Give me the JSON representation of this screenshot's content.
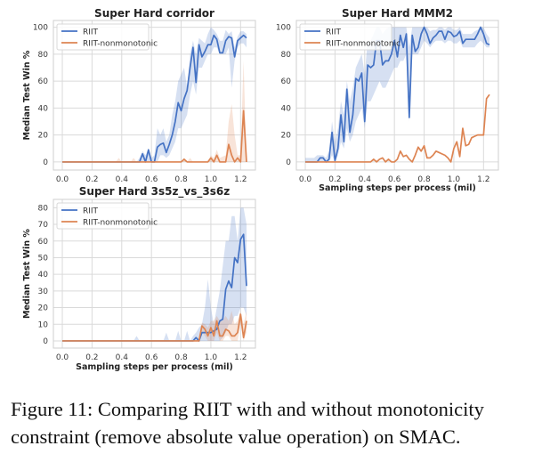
{
  "caption": {
    "line1": "Figure 11: Comparing RIIT with and without monotonicity",
    "line2": "constraint (remove absolute value operation) on SMAC."
  },
  "colors": {
    "RIIT": "#4472c4",
    "RIIT-nonmonotonic": "#dd8452",
    "grid": "#dadada"
  },
  "chart_data": [
    {
      "type": "line",
      "title": "Super Hard corridor",
      "xlabel": "",
      "ylabel": "Median Test Win %",
      "xlim": [
        -0.06,
        1.3
      ],
      "ylim": [
        -6,
        105
      ],
      "xticks": [
        0.0,
        0.2,
        0.4,
        0.6,
        0.8,
        1.0,
        1.2
      ],
      "xtick_labels": [
        "0.0",
        "0.2",
        "0.4",
        "0.6",
        "0.8",
        "1.0",
        "1.2"
      ],
      "yticks": [
        0,
        20,
        40,
        60,
        80,
        100
      ],
      "ytick_labels": [
        "0",
        "20",
        "40",
        "60",
        "80",
        "100"
      ],
      "grid": true,
      "legend": "top-left",
      "series": [
        {
          "name": "RIIT",
          "x": [
            0,
            0.5,
            0.52,
            0.54,
            0.56,
            0.58,
            0.6,
            0.62,
            0.64,
            0.66,
            0.68,
            0.7,
            0.72,
            0.74,
            0.76,
            0.78,
            0.8,
            0.82,
            0.84,
            0.86,
            0.88,
            0.9,
            0.92,
            0.94,
            0.96,
            0.98,
            1.0,
            1.02,
            1.04,
            1.06,
            1.08,
            1.1,
            1.12,
            1.14,
            1.16,
            1.18,
            1.2,
            1.22,
            1.24
          ],
          "y": [
            0,
            0,
            0,
            6,
            0,
            9,
            0,
            0,
            11,
            13,
            14,
            7,
            13,
            20,
            30,
            44,
            38,
            47,
            53,
            70,
            85,
            59,
            87,
            78,
            82,
            87,
            87,
            94,
            91,
            81,
            81,
            90,
            93,
            92,
            78,
            90,
            92,
            94,
            92
          ],
          "lo": [
            0,
            0,
            0,
            0,
            0,
            0,
            0,
            0,
            0,
            5,
            5,
            3,
            5,
            10,
            15,
            25,
            25,
            30,
            35,
            50,
            60,
            50,
            70,
            70,
            75,
            80,
            80,
            85,
            85,
            80,
            80,
            80,
            85,
            55,
            75,
            85,
            88,
            88,
            85
          ],
          "hi": [
            0,
            0,
            3,
            8,
            5,
            10,
            3,
            5,
            25,
            20,
            25,
            15,
            20,
            35,
            45,
            60,
            65,
            70,
            55,
            80,
            90,
            80,
            92,
            90,
            88,
            95,
            100,
            98,
            95,
            90,
            90,
            98,
            95,
            97,
            85,
            93,
            97,
            97,
            95
          ]
        },
        {
          "name": "RIIT-nonmonotonic",
          "x": [
            0,
            0.36,
            0.38,
            0.4,
            0.46,
            0.48,
            0.5,
            0.8,
            0.82,
            0.84,
            0.86,
            0.88,
            0.9,
            0.98,
            1.0,
            1.02,
            1.04,
            1.06,
            1.1,
            1.12,
            1.14,
            1.16,
            1.18,
            1.2,
            1.22,
            1.24
          ],
          "y": [
            0,
            0,
            0,
            0,
            0,
            0,
            0,
            0,
            2,
            0,
            0,
            0,
            0,
            0,
            3,
            0,
            5,
            0,
            0,
            13,
            5,
            0,
            3,
            0,
            38,
            0
          ],
          "lo": [
            0,
            0,
            0,
            0,
            0,
            0,
            0,
            0,
            0,
            0,
            0,
            0,
            0,
            0,
            0,
            0,
            0,
            0,
            0,
            0,
            0,
            0,
            0,
            0,
            0,
            0
          ],
          "hi": [
            0,
            0,
            3,
            0,
            0,
            3,
            0,
            0,
            3,
            0,
            3,
            0,
            0,
            0,
            5,
            3,
            9,
            3,
            5,
            30,
            43,
            20,
            5,
            5,
            75,
            0
          ]
        }
      ]
    },
    {
      "type": "line",
      "title": "Super Hard MMM2",
      "xlabel": "Sampling steps per process (mil)",
      "ylabel": "",
      "xlim": [
        -0.06,
        1.3
      ],
      "ylim": [
        -6,
        105
      ],
      "xticks": [
        0.0,
        0.2,
        0.4,
        0.6,
        0.8,
        1.0,
        1.2
      ],
      "xtick_labels": [
        "0.0",
        "0.2",
        "0.4",
        "0.6",
        "0.8",
        "1.0",
        "1.2"
      ],
      "yticks": [
        0,
        20,
        40,
        60,
        80,
        100
      ],
      "ytick_labels": [
        "0",
        "20",
        "40",
        "60",
        "80",
        "100"
      ],
      "grid": true,
      "legend": "top-left",
      "series": [
        {
          "name": "RIIT",
          "x": [
            0,
            0.02,
            0.04,
            0.06,
            0.08,
            0.1,
            0.12,
            0.14,
            0.16,
            0.18,
            0.2,
            0.22,
            0.24,
            0.26,
            0.28,
            0.3,
            0.32,
            0.34,
            0.36,
            0.38,
            0.4,
            0.42,
            0.44,
            0.46,
            0.48,
            0.5,
            0.52,
            0.54,
            0.56,
            0.58,
            0.6,
            0.62,
            0.64,
            0.66,
            0.68,
            0.7,
            0.72,
            0.74,
            0.76,
            0.78,
            0.8,
            0.82,
            0.84,
            0.86,
            0.88,
            0.9,
            0.92,
            0.94,
            0.96,
            0.98,
            1.0,
            1.02,
            1.04,
            1.06,
            1.08,
            1.1,
            1.12,
            1.14,
            1.16,
            1.18,
            1.2,
            1.22,
            1.24
          ],
          "y": [
            0,
            0,
            0,
            0,
            0,
            3,
            3,
            0,
            2,
            22,
            1,
            10,
            35,
            15,
            54,
            22,
            35,
            62,
            60,
            66,
            30,
            72,
            70,
            72,
            90,
            90,
            72,
            75,
            75,
            80,
            90,
            78,
            94,
            85,
            95,
            33,
            94,
            82,
            85,
            95,
            100,
            95,
            88,
            92,
            94,
            97,
            97,
            91,
            97,
            96,
            93,
            94,
            97,
            88,
            91,
            91,
            91,
            91,
            95,
            100,
            95,
            88,
            87
          ],
          "lo": [
            0,
            0,
            0,
            0,
            0,
            0,
            0,
            0,
            0,
            5,
            0,
            5,
            15,
            10,
            25,
            15,
            20,
            30,
            35,
            40,
            25,
            45,
            45,
            50,
            55,
            60,
            55,
            55,
            60,
            65,
            70,
            70,
            75,
            75,
            80,
            30,
            80,
            80,
            80,
            85,
            90,
            88,
            85,
            88,
            90,
            90,
            90,
            88,
            90,
            90,
            88,
            88,
            90,
            85,
            85,
            85,
            85,
            85,
            88,
            90,
            88,
            85,
            85
          ],
          "hi": [
            3,
            3,
            3,
            3,
            5,
            5,
            5,
            3,
            8,
            30,
            15,
            25,
            45,
            35,
            60,
            45,
            55,
            70,
            75,
            80,
            65,
            90,
            90,
            95,
            100,
            100,
            95,
            98,
            100,
            100,
            100,
            100,
            100,
            100,
            100,
            85,
            100,
            100,
            100,
            100,
            100,
            100,
            97,
            98,
            98,
            100,
            100,
            98,
            100,
            100,
            98,
            98,
            100,
            95,
            95,
            95,
            95,
            97,
            98,
            100,
            100,
            95,
            92
          ]
        },
        {
          "name": "RIIT-nonmonotonic",
          "x": [
            0,
            0.02,
            0.04,
            0.06,
            0.08,
            0.1,
            0.12,
            0.14,
            0.16,
            0.18,
            0.2,
            0.22,
            0.24,
            0.26,
            0.28,
            0.3,
            0.32,
            0.34,
            0.36,
            0.38,
            0.4,
            0.42,
            0.44,
            0.46,
            0.48,
            0.5,
            0.52,
            0.54,
            0.56,
            0.58,
            0.6,
            0.62,
            0.64,
            0.66,
            0.68,
            0.7,
            0.72,
            0.74,
            0.76,
            0.78,
            0.8,
            0.82,
            0.84,
            0.86,
            0.88,
            0.9,
            0.92,
            0.94,
            0.96,
            0.98,
            1.0,
            1.02,
            1.04,
            1.06,
            1.08,
            1.1,
            1.12,
            1.14,
            1.16,
            1.18,
            1.2,
            1.22,
            1.24
          ],
          "y": [
            0,
            0,
            0,
            0,
            0,
            0,
            0,
            0,
            0,
            0,
            0,
            0,
            0,
            0,
            0,
            0,
            0,
            0,
            0,
            0,
            0,
            0,
            0,
            2,
            0,
            2,
            3,
            0,
            2,
            0,
            0,
            2,
            8,
            4,
            5,
            2,
            0,
            5,
            11,
            8,
            12,
            3,
            3,
            5,
            8,
            7,
            6,
            5,
            3,
            0,
            10,
            15,
            4,
            25,
            12,
            13,
            18,
            19,
            20,
            20,
            20,
            47,
            50
          ]
        }
      ]
    },
    {
      "type": "line",
      "title": "Super Hard 3s5z_vs_3s6z",
      "xlabel": "Sampling steps per process (mil)",
      "ylabel": "Median Test Win %",
      "xlim": [
        -0.06,
        1.3
      ],
      "ylim": [
        -4.3,
        85
      ],
      "xticks": [
        0.0,
        0.2,
        0.4,
        0.6,
        0.8,
        1.0,
        1.2
      ],
      "xtick_labels": [
        "0.0",
        "0.2",
        "0.4",
        "0.6",
        "0.8",
        "1.0",
        "1.2"
      ],
      "yticks": [
        0,
        10,
        20,
        30,
        40,
        50,
        60,
        70,
        80
      ],
      "ytick_labels": [
        "0",
        "10",
        "20",
        "30",
        "40",
        "50",
        "60",
        "70",
        "80"
      ],
      "grid": true,
      "legend": "top-left",
      "series": [
        {
          "name": "RIIT",
          "x": [
            0,
            0.48,
            0.5,
            0.52,
            0.68,
            0.7,
            0.72,
            0.76,
            0.78,
            0.8,
            0.82,
            0.84,
            0.86,
            0.88,
            0.9,
            0.92,
            0.94,
            0.96,
            0.98,
            1.0,
            1.02,
            1.04,
            1.06,
            1.08,
            1.1,
            1.12,
            1.14,
            1.16,
            1.18,
            1.2,
            1.22,
            1.24
          ],
          "y": [
            0,
            0,
            0,
            0,
            0,
            0,
            0,
            0,
            0,
            0,
            0,
            0,
            0,
            0,
            2,
            0,
            5,
            5,
            5,
            5,
            6,
            7,
            12,
            13,
            31,
            36,
            32,
            50,
            47,
            61,
            64,
            33
          ],
          "lo": [
            0,
            0,
            0,
            0,
            0,
            0,
            0,
            0,
            0,
            0,
            0,
            0,
            0,
            0,
            0,
            0,
            0,
            0,
            0,
            0,
            0,
            0,
            0,
            2,
            5,
            10,
            10,
            15,
            15,
            20,
            20,
            15
          ],
          "hi": [
            0,
            0,
            3,
            0,
            0,
            5,
            0,
            0,
            6,
            0,
            0,
            6,
            0,
            3,
            5,
            8,
            10,
            20,
            37,
            20,
            10,
            20,
            30,
            45,
            60,
            60,
            75,
            75,
            60,
            80,
            80,
            70
          ]
        },
        {
          "name": "RIIT-nonmonotonic",
          "x": [
            0,
            0.9,
            0.92,
            0.94,
            0.96,
            0.98,
            1.0,
            1.02,
            1.04,
            1.06,
            1.08,
            1.1,
            1.12,
            1.14,
            1.16,
            1.18,
            1.2,
            1.22,
            1.24
          ],
          "y": [
            0,
            0,
            0,
            9,
            7,
            3,
            8,
            3,
            12,
            3,
            3,
            7,
            6,
            3,
            3,
            5,
            16,
            2,
            12
          ],
          "lo": [
            0,
            0,
            0,
            5,
            3,
            0,
            0,
            0,
            5,
            0,
            0,
            3,
            3,
            0,
            0,
            0,
            10,
            0,
            5
          ],
          "hi": [
            0,
            0,
            2,
            11,
            10,
            8,
            12,
            12,
            15,
            12,
            12,
            15,
            12,
            18,
            10,
            12,
            18,
            10,
            18
          ]
        }
      ]
    }
  ]
}
